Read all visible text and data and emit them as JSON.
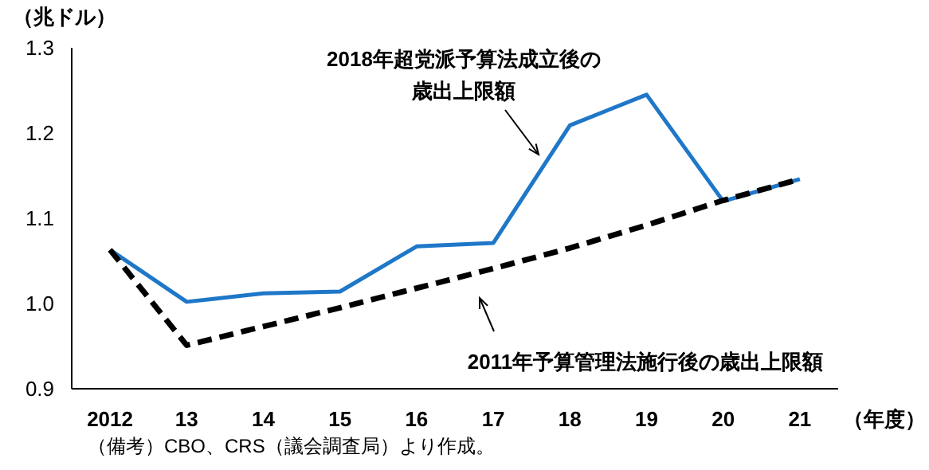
{
  "chart_data": {
    "type": "line",
    "ylabel": "（兆ドル）",
    "xlabel": "（年度）",
    "categories": [
      "2012",
      "13",
      "14",
      "15",
      "16",
      "17",
      "18",
      "19",
      "20",
      "21"
    ],
    "series": [
      {
        "name": "2018年超党派予算法成立後の歳出上限額",
        "color": "#1f77c8",
        "line_style": "solid",
        "values": [
          1.063,
          1.002,
          1.012,
          1.014,
          1.067,
          1.071,
          1.209,
          1.245,
          1.12,
          1.146
        ]
      },
      {
        "name": "2011年予算管理法施行後の歳出上限額",
        "color": "#000000",
        "line_style": "dashed",
        "values": [
          1.063,
          0.951,
          0.973,
          0.995,
          1.018,
          1.041,
          1.065,
          1.092,
          1.121,
          1.146
        ]
      }
    ],
    "ylim": [
      0.9,
      1.3
    ],
    "yticks": [
      {
        "value": 0.9,
        "label": "0.9"
      },
      {
        "value": 1.0,
        "label": "1.0"
      },
      {
        "value": 1.1,
        "label": "1.1"
      },
      {
        "value": 1.2,
        "label": "1.2"
      },
      {
        "value": 1.3,
        "label": "1.3"
      }
    ],
    "grid": false,
    "legend": "bottom right",
    "marker": "none",
    "annotations": [
      "（備考）CBO、CRS（議会調査局）より作成。"
    ]
  }
}
